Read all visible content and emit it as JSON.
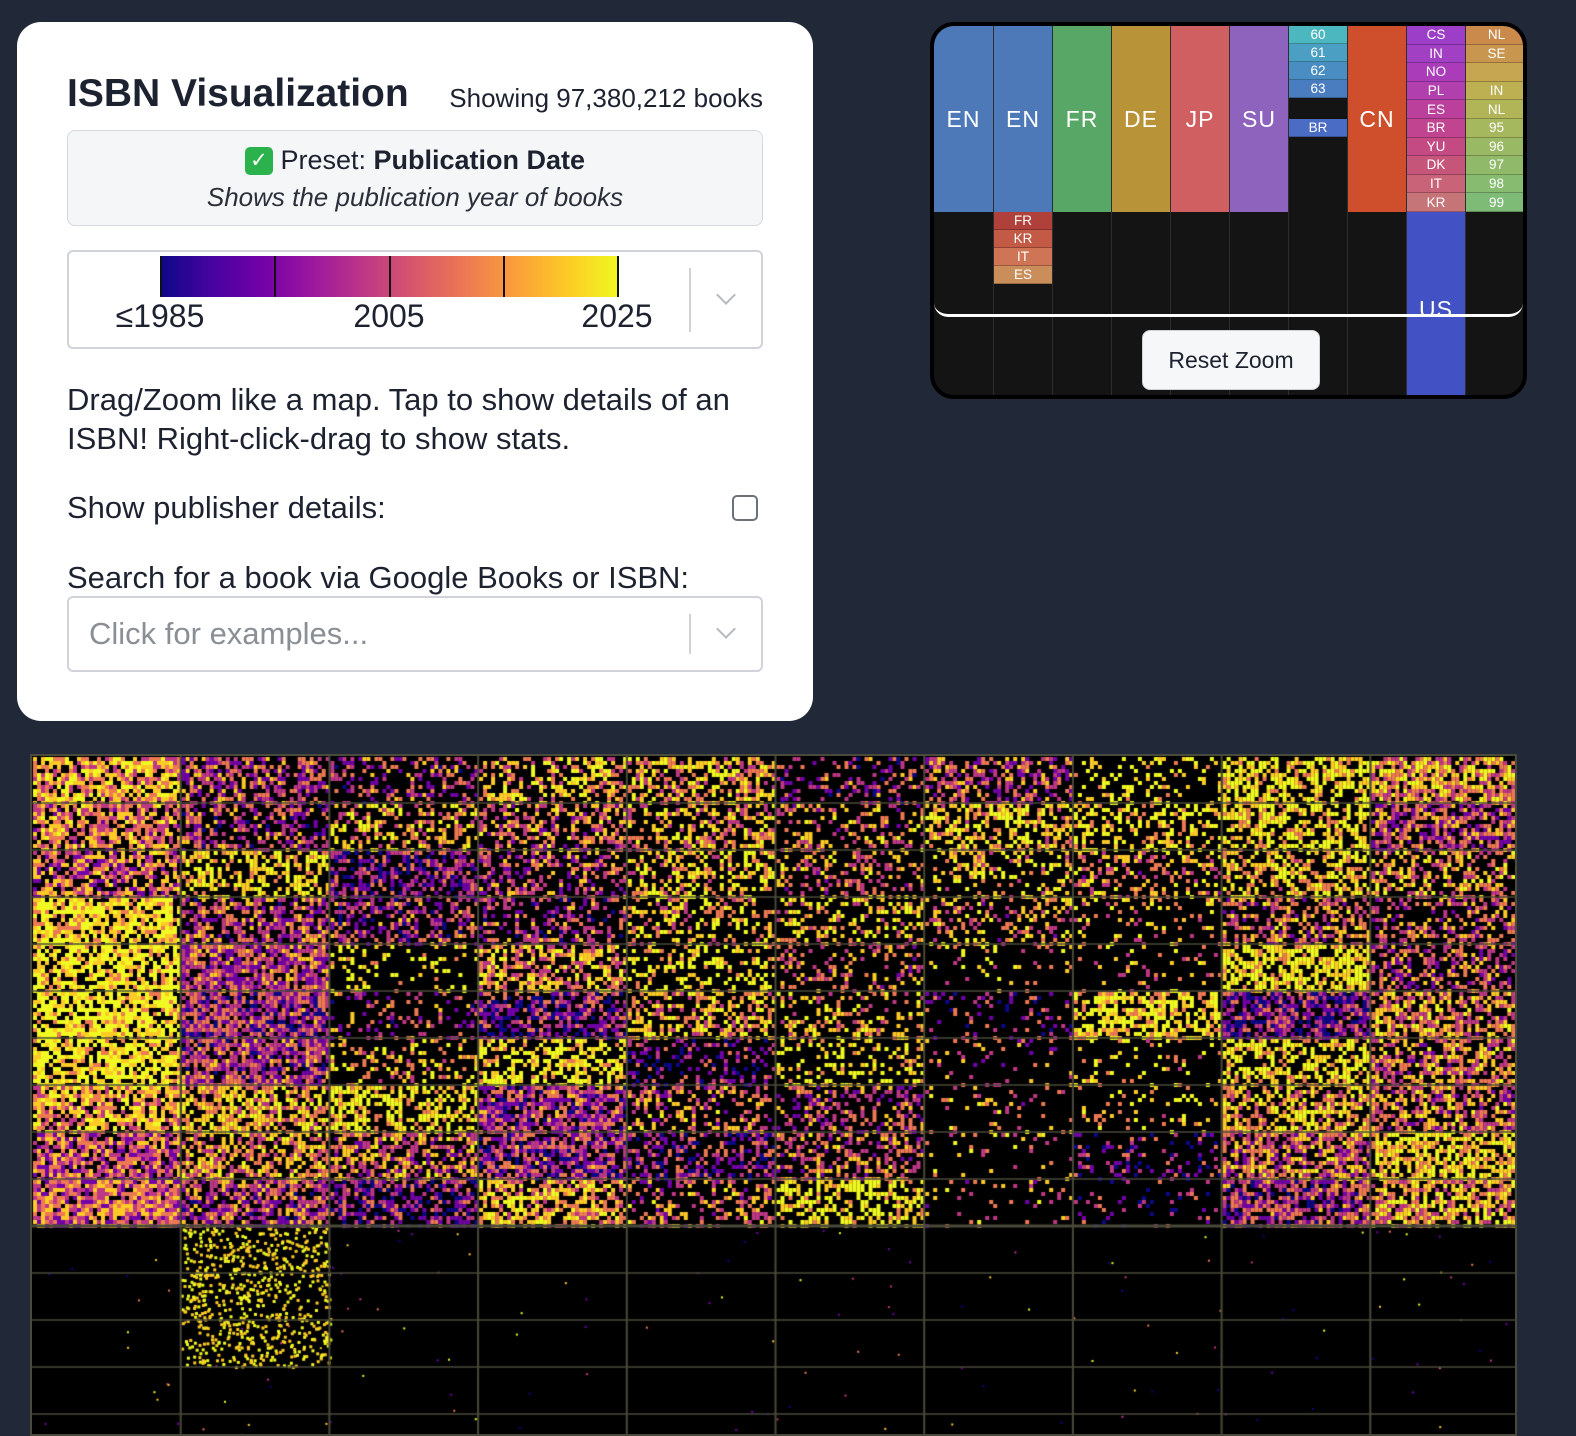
{
  "panel": {
    "title": "ISBN Visualization",
    "count": "Showing 97,380,212 books",
    "preset": {
      "prefix": "Preset:",
      "name": "Publication Date",
      "description": "Shows the publication year of books",
      "check_icon": "check-mark-icon"
    },
    "scale": {
      "labels": [
        "≤1985",
        "2005",
        "2025"
      ],
      "colors": [
        "#0d0887",
        "#7201a8",
        "#bd3786",
        "#ed7953",
        "#fdca26",
        "#f0f921"
      ]
    },
    "help": "Drag/Zoom like a map. Tap to show details of an ISBN! Right-click-drag to show stats.",
    "publisher_label": "Show publisher details:",
    "publisher_checked": false,
    "search_label": "Search for a book via Google Books or ISBN:",
    "search_placeholder": "Click for examples..."
  },
  "minimap": {
    "regions": [
      "EN",
      "EN",
      "FR",
      "DE",
      "JP",
      "SU",
      "CN",
      "US"
    ],
    "col7_labels": [
      "60",
      "61",
      "62",
      "63",
      "BR"
    ],
    "col2_labels": [
      "FR",
      "KR",
      "IT",
      "ES"
    ],
    "col10_labels": [
      "CS",
      "IN",
      "NO",
      "PL",
      "ES",
      "BR",
      "YU",
      "DK",
      "IT",
      "KR"
    ],
    "col11_labels": [
      "NL",
      "SE",
      "",
      "IN",
      "NL",
      "95",
      "96",
      "97",
      "98",
      "99"
    ],
    "reset_label": "Reset Zoom"
  }
}
